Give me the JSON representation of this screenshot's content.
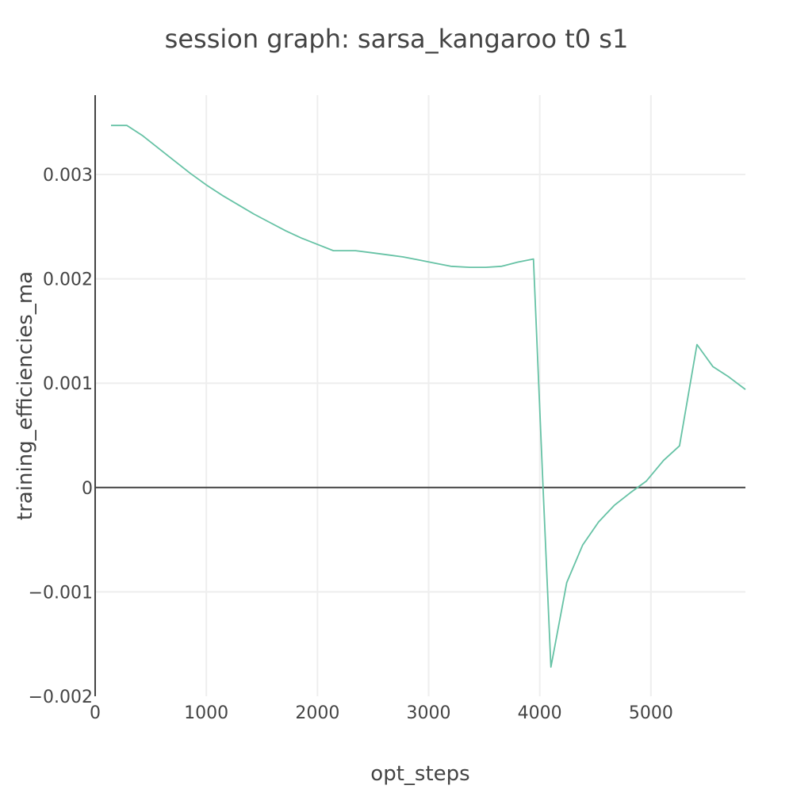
{
  "chart_data": {
    "type": "line",
    "title": "session graph: sarsa_kangaroo t0 s1",
    "xlabel": "opt_steps",
    "ylabel": "training_efficiencies_ma",
    "xlim": [
      0,
      5850
    ],
    "ylim": [
      -0.002,
      0.00376
    ],
    "x_ticks": [
      0,
      1000,
      2000,
      3000,
      4000,
      5000
    ],
    "x_tick_labels": [
      "0",
      "1000",
      "2000",
      "3000",
      "4000",
      "5000"
    ],
    "y_ticks": [
      -0.002,
      -0.001,
      0,
      0.001,
      0.002,
      0.003
    ],
    "y_tick_labels": [
      "−0.002",
      "−0.001",
      "0",
      "0.001",
      "0.002",
      "0.003"
    ],
    "grid": true,
    "colors": {
      "series": "#66c2a5",
      "text": "#444444",
      "grid": "#eeeeee"
    },
    "series": [
      {
        "x": [
          143,
          286,
          429,
          571,
          714,
          857,
          1000,
          1143,
          1286,
          1429,
          1571,
          1714,
          1857,
          2000,
          2143,
          2200,
          2343,
          2486,
          2629,
          2771,
          2914,
          3057,
          3200,
          3371,
          3514,
          3657,
          3800,
          3943,
          4029,
          4100,
          4243,
          4386,
          4529,
          4671,
          4814,
          4957,
          5114,
          5257,
          5414,
          5557,
          5700,
          5850
        ],
        "y": [
          0.00347,
          0.00347,
          0.00337,
          0.00325,
          0.00313,
          0.00301,
          0.0029,
          0.0028,
          0.00271,
          0.00262,
          0.00254,
          0.00246,
          0.00239,
          0.00233,
          0.00227,
          0.00227,
          0.00227,
          0.00225,
          0.00223,
          0.00221,
          0.00218,
          0.00215,
          0.00212,
          0.00211,
          0.00211,
          0.00212,
          0.00216,
          0.00219,
          2e-05,
          -0.00172,
          -0.00091,
          -0.00055,
          -0.00033,
          -0.00017,
          -5e-05,
          6e-05,
          0.00026,
          0.0004,
          0.00137,
          0.00116,
          0.00106,
          0.00094
        ]
      }
    ]
  }
}
